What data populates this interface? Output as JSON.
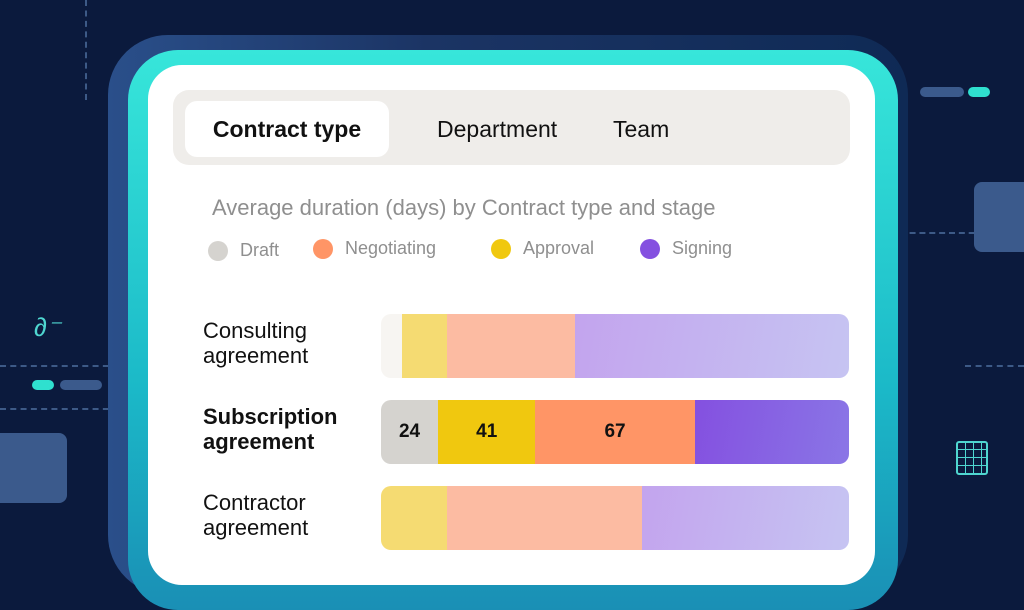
{
  "tabs": [
    {
      "label": "Contract type",
      "active": true
    },
    {
      "label": "Department",
      "active": false
    },
    {
      "label": "Team",
      "active": false
    }
  ],
  "chart_data": {
    "type": "bar",
    "orientation": "horizontal-stacked",
    "title": "Average duration (days) by Contract type and stage",
    "legend_position": "top",
    "categories": [
      "Consulting agreement",
      "Subscription agreement",
      "Contractor agreement"
    ],
    "highlighted_category": "Subscription agreement",
    "series": [
      {
        "name": "Draft",
        "color": "#d5d3cf",
        "values": [
          9,
          24,
          0
        ]
      },
      {
        "name": "Approval",
        "color": "#f0c80f",
        "values": [
          19,
          41,
          28
        ]
      },
      {
        "name": "Negotiating",
        "color": "#ff9566",
        "values": [
          55,
          67,
          83
        ]
      },
      {
        "name": "Signing",
        "color": "#8450e0",
        "values": [
          117,
          65,
          88
        ]
      }
    ],
    "data_labels": {
      "Subscription agreement": [
        "24",
        "41",
        "67"
      ]
    },
    "legend": [
      {
        "name": "Draft",
        "color": "#d5d3cf"
      },
      {
        "name": "Negotiating",
        "color": "#ff9566"
      },
      {
        "name": "Approval",
        "color": "#f0c80f"
      },
      {
        "name": "Signing",
        "color": "#8450e0"
      }
    ]
  }
}
